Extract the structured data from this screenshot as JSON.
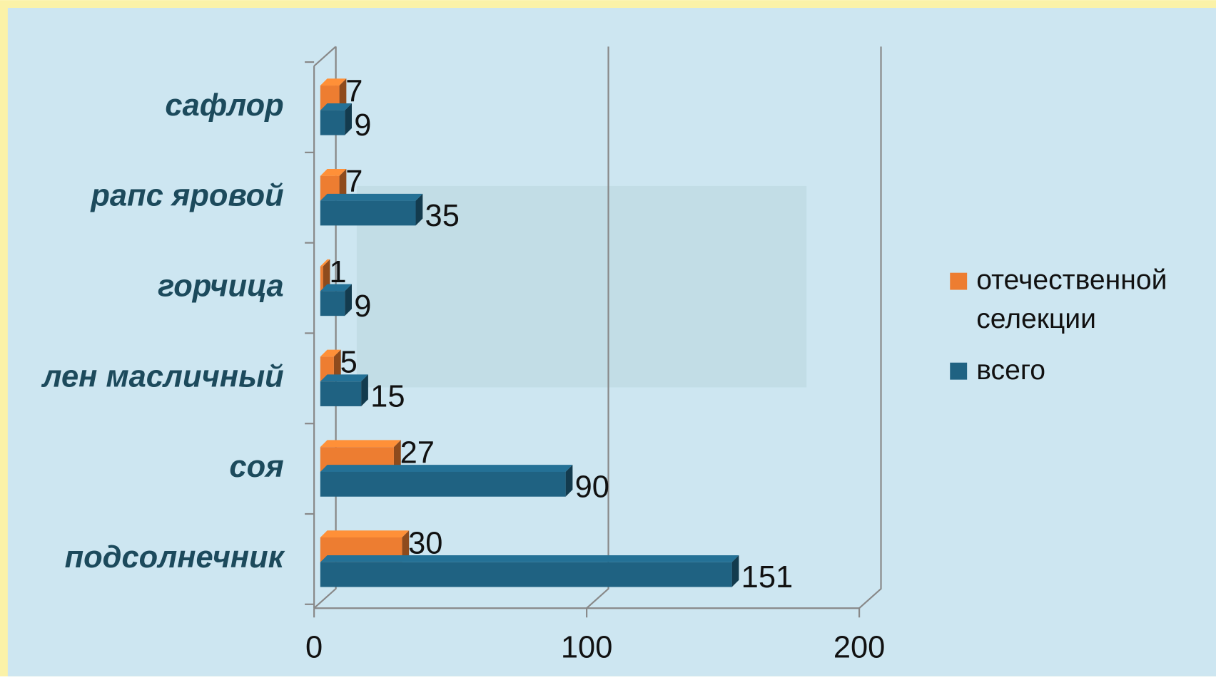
{
  "chart_data": {
    "type": "bar3d_horizontal",
    "categories": [
      "сафлор",
      "рапс яровой",
      "горчица",
      "лен масличный",
      "соя",
      "подсолнечник"
    ],
    "series": [
      {
        "name": "отечественной селекции",
        "color": "#ed7d31",
        "values": [
          7,
          7,
          1,
          5,
          27,
          30
        ]
      },
      {
        "name": "всего",
        "color": "#1f6282",
        "values": [
          9,
          35,
          9,
          15,
          90,
          151
        ]
      }
    ],
    "xlim": [
      0,
      200
    ],
    "xticks": [
      0,
      100,
      200
    ],
    "grid": true,
    "legend": "right"
  }
}
